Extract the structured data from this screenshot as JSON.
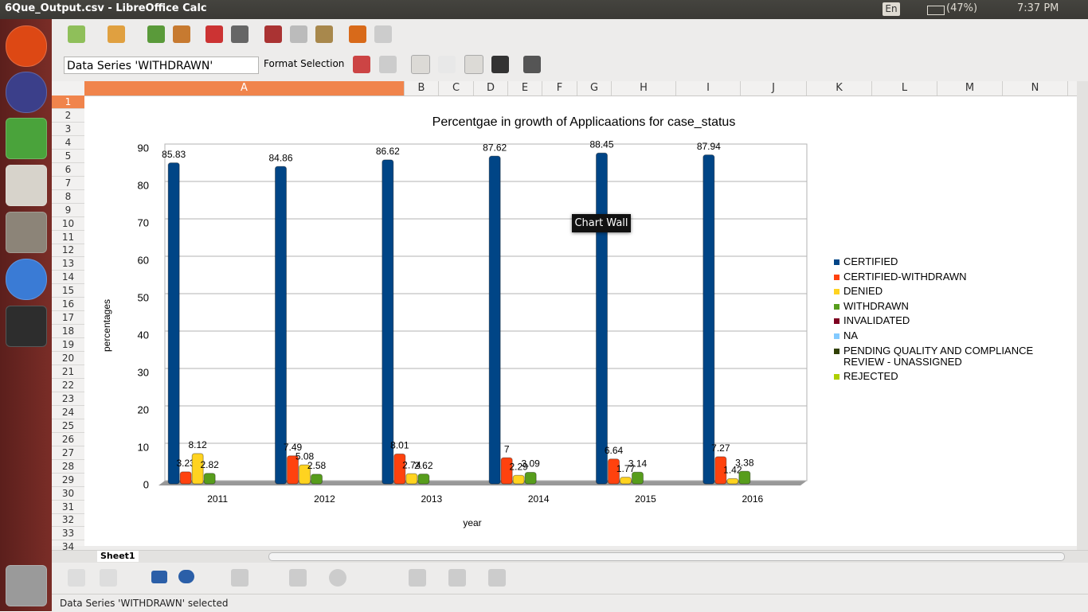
{
  "window_title": "6Que_Output.csv - LibreOffice Calc",
  "top_bar": {
    "keyboard": "En",
    "battery": "(47%)",
    "clock": "7:37 PM"
  },
  "toolbar": {
    "name_box": "Data Series 'WITHDRAWN'",
    "format_selection": "Format Selection"
  },
  "columns": [
    "A",
    "B",
    "C",
    "D",
    "E",
    "F",
    "G",
    "H",
    "I",
    "J",
    "K",
    "L",
    "M",
    "N"
  ],
  "rows": [
    1,
    2,
    3,
    4,
    5,
    6,
    7,
    8,
    9,
    10,
    11,
    12,
    13,
    14,
    15,
    16,
    17,
    18,
    19,
    20,
    21,
    22,
    23,
    24,
    25,
    26,
    27,
    28,
    29,
    30,
    31,
    32,
    33,
    34
  ],
  "sheet_tab": "Sheet1",
  "status": "Data Series 'WITHDRAWN' selected",
  "tooltip": "Chart Wall",
  "chart_data": {
    "type": "bar",
    "title": "Percentgae in growth of Applicaations for case_status",
    "x_label": "year",
    "y_label": "percentages",
    "categories": [
      "2011",
      "2012",
      "2013",
      "2014",
      "2015",
      "2016"
    ],
    "series": [
      {
        "name": "CERTIFIED",
        "color": "#004586",
        "values": [
          85.83,
          84.86,
          86.62,
          87.62,
          88.45,
          87.94
        ]
      },
      {
        "name": "CERTIFIED-WITHDRAWN",
        "color": "#ff420e",
        "values": [
          3.23,
          7.49,
          8.01,
          7,
          6.64,
          7.27
        ]
      },
      {
        "name": "DENIED",
        "color": "#ffd320",
        "values": [
          8.12,
          5.08,
          2.74,
          2.29,
          1.77,
          1.42
        ]
      },
      {
        "name": "WITHDRAWN",
        "color": "#579d1c",
        "values": [
          2.82,
          2.58,
          2.62,
          3.09,
          3.14,
          3.38
        ]
      },
      {
        "name": "INVALIDATED",
        "color": "#7e0021",
        "values": [
          null,
          null,
          null,
          null,
          null,
          null
        ]
      },
      {
        "name": "NA",
        "color": "#83caff",
        "values": [
          null,
          null,
          null,
          null,
          null,
          null
        ]
      },
      {
        "name": "PENDING QUALITY AND COMPLIANCE REVIEW - UNASSIGNED",
        "color": "#314004",
        "values": [
          null,
          null,
          null,
          null,
          null,
          null
        ]
      },
      {
        "name": "REJECTED",
        "color": "#aecf00",
        "values": [
          null,
          null,
          null,
          null,
          null,
          null
        ]
      }
    ],
    "ylim": [
      0,
      90
    ],
    "yticks": [
      0,
      10,
      20,
      30,
      40,
      50,
      60,
      70,
      80,
      90
    ],
    "grid": true,
    "legend": "right"
  }
}
